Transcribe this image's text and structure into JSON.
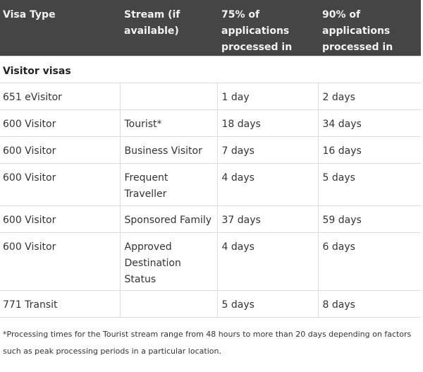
{
  "headers": {
    "visa_type": "Visa Type",
    "stream": "Stream (if available)",
    "p75": "75% of applications processed in",
    "p90": "90% of applications processed in"
  },
  "section_title": "Visitor visas",
  "rows": [
    {
      "visa": "651 eVisitor",
      "stream": "",
      "p75": "1 day",
      "p90": "2 days"
    },
    {
      "visa": "600 Visitor",
      "stream": "Tourist*",
      "p75": "18 days",
      "p90": "34 days"
    },
    {
      "visa": "600 Visitor",
      "stream": "Business Visitor",
      "p75": "7 days",
      "p90": "16 days"
    },
    {
      "visa": "600 Visitor",
      "stream": "Frequent Traveller",
      "p75": "4 days",
      "p90": "5 days"
    },
    {
      "visa": "600 Visitor",
      "stream": "Sponsored Family",
      "p75": "37 days",
      "p90": "59 days"
    },
    {
      "visa": "600 Visitor",
      "stream": "Approved Destination Status",
      "p75": "4 days",
      "p90": "6 days"
    },
    {
      "visa": "771 Transit",
      "stream": "",
      "p75": "5 days",
      "p90": "8 days"
    }
  ],
  "footnote": "*Processing times for the Tourist stream range from 48 hours to more than 20 days depending on factors such as peak processing periods in a particular location."
}
